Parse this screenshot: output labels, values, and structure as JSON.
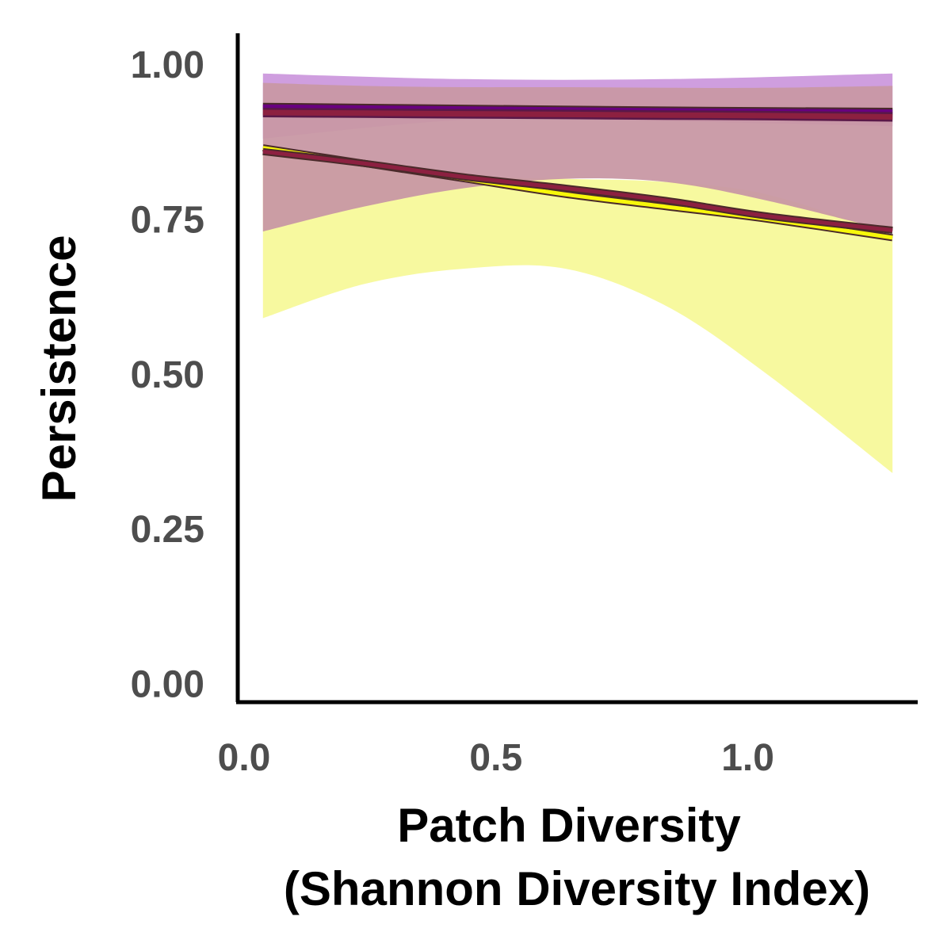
{
  "chart_data": {
    "type": "line",
    "xlabel_lines": [
      "Patch Diversity",
      "(Shannon Diversity Index)"
    ],
    "ylabel": "Persistence",
    "xlim": [
      0.0,
      1.35
    ],
    "ylim": [
      -0.03,
      1.05
    ],
    "x_ticks": [
      0.0,
      0.5,
      1.0
    ],
    "x_tick_labels": [
      "0.0",
      "0.5",
      "1.0"
    ],
    "y_ticks": [
      0.0,
      0.25,
      0.5,
      0.75,
      1.0
    ],
    "y_tick_labels": [
      "0.00",
      "0.25",
      "0.50",
      "0.75",
      "1.00"
    ],
    "grid": false,
    "legend": "none",
    "series": [
      {
        "color": "#f7f70a",
        "fill_color": "#f7f99a",
        "x": [
          0.05,
          0.25,
          0.45,
          0.65,
          0.85,
          1.05,
          1.3
        ],
        "y": [
          0.865,
          0.84,
          0.815,
          0.79,
          0.77,
          0.75,
          0.72
        ],
        "lower": [
          0.59,
          0.645,
          0.67,
          0.67,
          0.61,
          0.5,
          0.34
        ],
        "upper": [
          0.86,
          0.84,
          0.82,
          0.815,
          0.81,
          0.79,
          0.725
        ]
      },
      {
        "color": "#680080",
        "fill_color": "#cc99dd",
        "x": [
          0.05,
          0.45,
          0.85,
          1.3
        ],
        "y": [
          0.932,
          0.929,
          0.926,
          0.924
        ],
        "lower": [
          0.88,
          0.91,
          0.908,
          0.9
        ],
        "upper": [
          0.985,
          0.976,
          0.976,
          0.985
        ]
      },
      {
        "color": "#8c2040",
        "fill_color": "#c898a4",
        "x": [
          0.05,
          0.25,
          0.45,
          0.65,
          0.85,
          1.05,
          1.3
        ],
        "y": [
          0.859,
          0.84,
          0.818,
          0.8,
          0.78,
          0.755,
          0.732
        ],
        "line_y": [
          0.922,
          0.921,
          0.92,
          0.919,
          0.918,
          0.917,
          0.915
        ],
        "lower": [
          0.73,
          0.77,
          0.8,
          0.815,
          0.81,
          0.78,
          0.73
        ],
        "upper": [
          0.97,
          0.965,
          0.963,
          0.963,
          0.962,
          0.962,
          0.965
        ]
      }
    ]
  }
}
